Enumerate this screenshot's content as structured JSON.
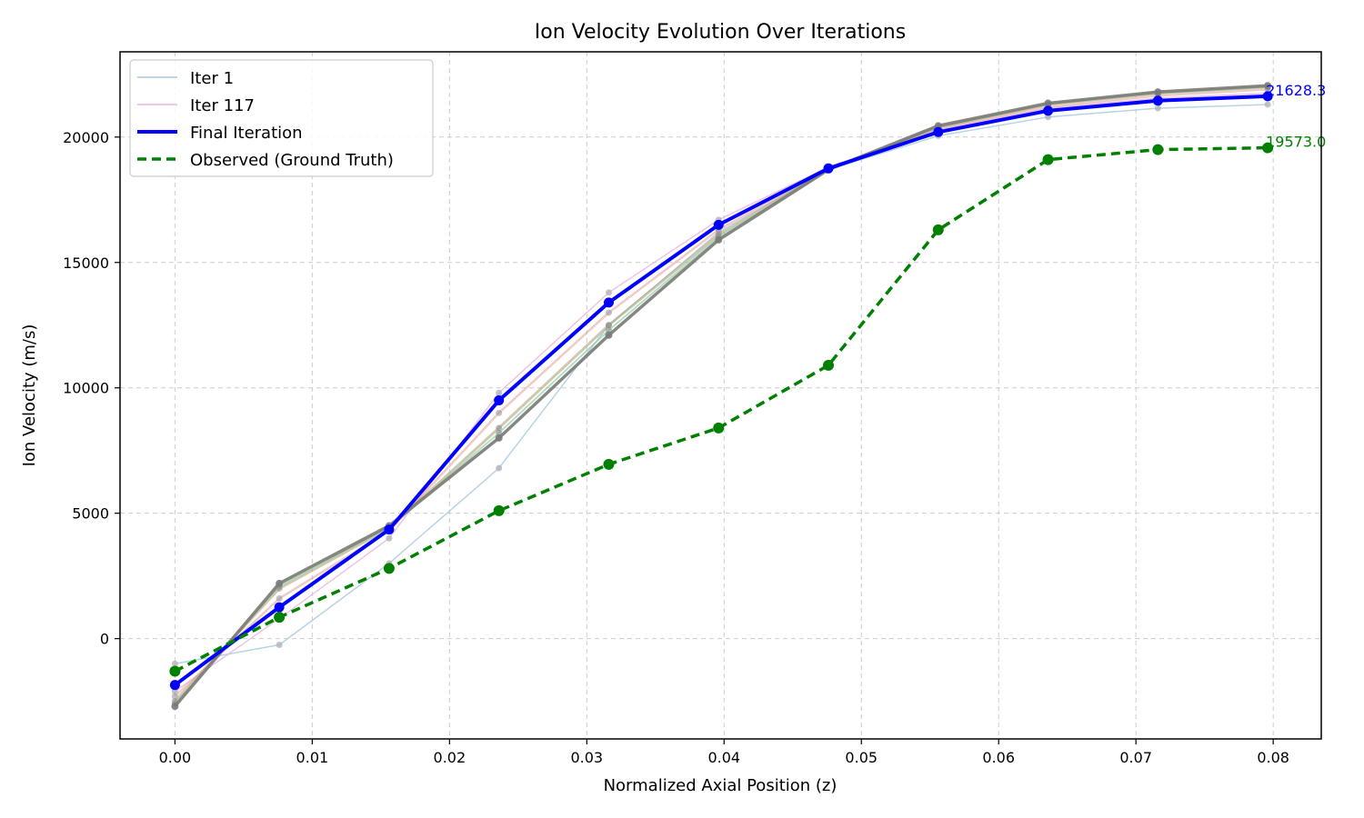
{
  "chart_data": {
    "type": "line",
    "title": "Ion Velocity Evolution Over Iterations",
    "xlabel": "Normalized Axial Position (z)",
    "ylabel": "Ion Velocity (m/s)",
    "xlim": [
      -0.004,
      0.0835
    ],
    "ylim": [
      -4000,
      23400
    ],
    "x_ticks": [
      0.0,
      0.01,
      0.02,
      0.03,
      0.04,
      0.05,
      0.06,
      0.07,
      0.08
    ],
    "x_tick_labels": [
      "0.00",
      "0.01",
      "0.02",
      "0.03",
      "0.04",
      "0.05",
      "0.06",
      "0.07",
      "0.08"
    ],
    "y_ticks": [
      0,
      5000,
      10000,
      15000,
      20000
    ],
    "y_tick_labels": [
      "0",
      "5000",
      "10000",
      "15000",
      "20000"
    ],
    "grid": true,
    "legend_position": "top-left",
    "x": [
      0.0,
      0.0076,
      0.0156,
      0.0236,
      0.0316,
      0.0396,
      0.0476,
      0.0556,
      0.0636,
      0.0716,
      0.0796
    ],
    "series": [
      {
        "name": "Iter 1",
        "color": "#a6c8dc",
        "width": 1.5,
        "dash": "",
        "opacity": 0.8,
        "marker": true,
        "marker_color": "#b0b4bc",
        "marker_r": 3.5,
        "values": [
          -1000,
          -250,
          3000,
          6800,
          12500,
          16200,
          18700,
          20050,
          20800,
          21150,
          21300
        ]
      },
      {
        "name": "Iter 117",
        "color": "#e8b4e0",
        "width": 1.5,
        "dash": "",
        "opacity": 0.8,
        "marker": true,
        "marker_color": "#b0b4bc",
        "marker_r": 3.5,
        "values": [
          -2100,
          800,
          4000,
          9800,
          13800,
          16700,
          18800,
          20300,
          21150,
          21550,
          21750
        ]
      },
      {
        "name": "",
        "color": "#e4a8a0",
        "width": 2.5,
        "dash": "",
        "opacity": 0.6,
        "marker": true,
        "marker_color": "#9a9aa0",
        "marker_r": 3.5,
        "values": [
          -2300,
          1600,
          4300,
          9000,
          13000,
          16300,
          18750,
          20350,
          21200,
          21650,
          21900
        ]
      },
      {
        "name": "",
        "color": "#b0a478",
        "width": 3,
        "dash": "",
        "opacity": 0.6,
        "marker": true,
        "marker_color": "#8a8a8a",
        "marker_r": 3.5,
        "values": [
          -2500,
          2000,
          4400,
          8400,
          12500,
          16100,
          18700,
          20400,
          21300,
          21750,
          22000
        ]
      },
      {
        "name": "",
        "color": "#80c8a0",
        "width": 2,
        "dash": "",
        "opacity": 0.6,
        "marker": true,
        "marker_color": "#8a8a8a",
        "marker_r": 3.5,
        "values": [
          -2600,
          2100,
          4450,
          8200,
          12300,
          16000,
          18700,
          20400,
          21300,
          21750,
          22000
        ]
      },
      {
        "name": "",
        "color": "#7a7a74",
        "width": 3.5,
        "dash": "",
        "opacity": 0.9,
        "marker": true,
        "marker_color": "#7a7a7a",
        "marker_r": 4,
        "values": [
          -2700,
          2200,
          4500,
          8000,
          12100,
          15900,
          18700,
          20450,
          21350,
          21800,
          22050
        ]
      },
      {
        "name": "Final Iteration",
        "color": "#0000ff",
        "width": 4,
        "dash": "",
        "opacity": 1,
        "marker": true,
        "marker_color": "#0000ff",
        "marker_r": 5.5,
        "values": [
          -1850,
          1250,
          4350,
          9500,
          13400,
          16500,
          18750,
          20200,
          21050,
          21450,
          21628.3
        ]
      },
      {
        "name": "Observed (Ground Truth)",
        "color": "#008000",
        "width": 3.5,
        "dash": "10,6",
        "opacity": 1,
        "marker": true,
        "marker_color": "#008000",
        "marker_r": 6,
        "values": [
          -1300,
          850,
          2800,
          5100,
          6950,
          8400,
          10900,
          16300,
          19100,
          19500,
          19573.0
        ]
      }
    ],
    "end_labels": [
      {
        "text": "21628.3",
        "color": "#0000ff",
        "x": 0.0796,
        "y": 21628.3
      },
      {
        "text": "19573.0",
        "color": "#008000",
        "x": 0.0796,
        "y": 19573.0
      }
    ],
    "legend": [
      {
        "label": "Iter 1",
        "color": "#a6c8dc",
        "width": 1.5,
        "dash": ""
      },
      {
        "label": "Iter 117",
        "color": "#e8b4e0",
        "width": 1.5,
        "dash": ""
      },
      {
        "label": "Final Iteration",
        "color": "#0000ff",
        "width": 4,
        "dash": ""
      },
      {
        "label": "Observed (Ground Truth)",
        "color": "#008000",
        "width": 3.5,
        "dash": "10,6"
      }
    ]
  }
}
